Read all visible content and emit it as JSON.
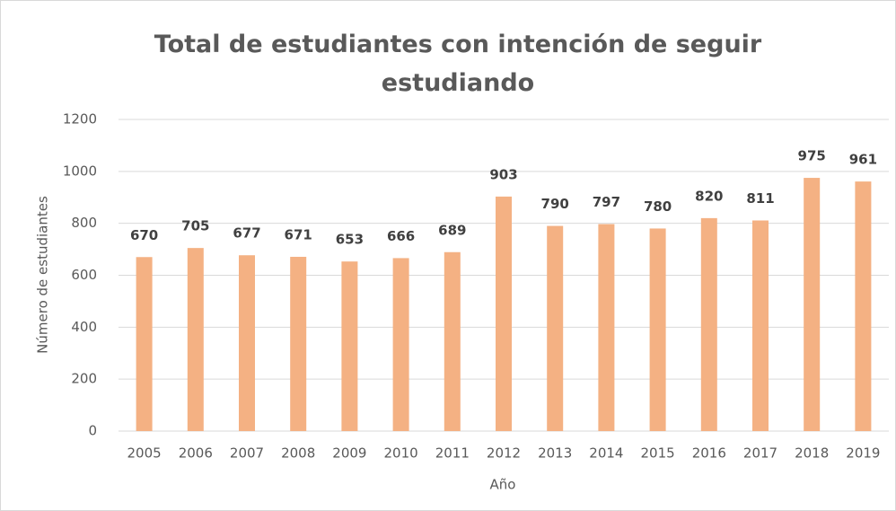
{
  "chart_data": {
    "type": "bar",
    "title": "Total de estudiantes con intención de seguir estudiando",
    "x_label": "Año",
    "y_label": "Número de estudiantes",
    "categories": [
      "2005",
      "2006",
      "2007",
      "2008",
      "2009",
      "2010",
      "2011",
      "2012",
      "2013",
      "2014",
      "2015",
      "2016",
      "2017",
      "2018",
      "2019"
    ],
    "values": [
      670,
      705,
      677,
      671,
      653,
      666,
      689,
      903,
      790,
      797,
      780,
      820,
      811,
      975,
      961
    ],
    "color": "#f4b183",
    "ylim": [
      0,
      1200
    ],
    "yticks": [
      0,
      200,
      400,
      600,
      800,
      1000,
      1200
    ],
    "grid": true
  }
}
